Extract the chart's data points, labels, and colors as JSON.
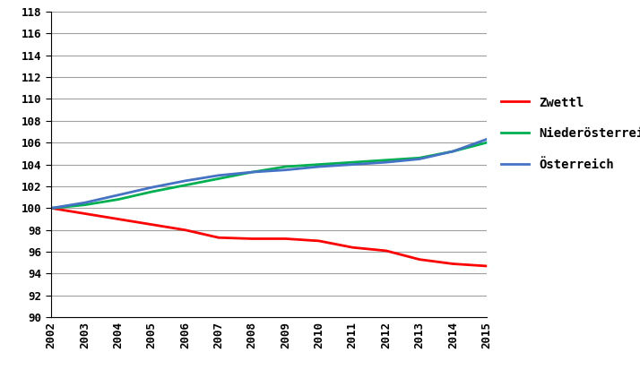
{
  "years": [
    2002,
    2003,
    2004,
    2005,
    2006,
    2007,
    2008,
    2009,
    2010,
    2011,
    2012,
    2013,
    2014,
    2015
  ],
  "zwettl": [
    100.0,
    99.5,
    99.0,
    98.5,
    98.0,
    97.3,
    97.2,
    97.2,
    97.0,
    96.4,
    96.1,
    95.3,
    94.9,
    94.7
  ],
  "niederoesterreich": [
    100.0,
    100.3,
    100.8,
    101.5,
    102.1,
    102.7,
    103.3,
    103.8,
    104.0,
    104.2,
    104.4,
    104.6,
    105.2,
    106.0
  ],
  "oesterreich": [
    100.0,
    100.5,
    101.2,
    101.9,
    102.5,
    103.0,
    103.3,
    103.5,
    103.8,
    104.0,
    104.2,
    104.5,
    105.2,
    106.3
  ],
  "zwettl_color": "#ff0000",
  "niederoesterreich_color": "#00b050",
  "oesterreich_color": "#4472c4",
  "zwettl_label": "Zwettl",
  "niederoesterreich_label": "Niederösterreich",
  "oesterreich_label": "Österreich",
  "ylim": [
    90,
    118
  ],
  "yticks": [
    90,
    92,
    94,
    96,
    98,
    100,
    102,
    104,
    106,
    108,
    110,
    112,
    114,
    116,
    118
  ],
  "background_color": "#ffffff",
  "grid_color": "#a0a0a0",
  "line_width": 2.0,
  "tick_fontsize": 9,
  "legend_fontsize": 10
}
